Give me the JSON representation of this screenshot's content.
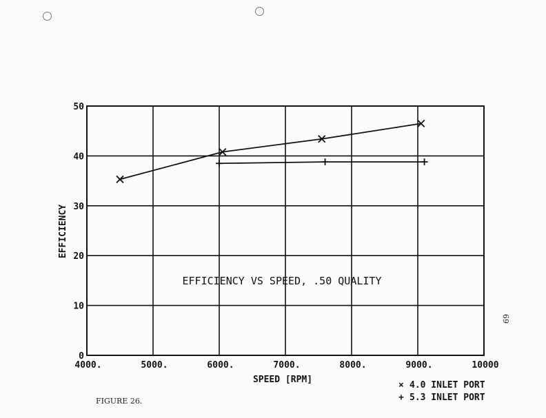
{
  "figure_caption": "FIGURE 26.",
  "page_number": "69",
  "chart_data": {
    "type": "line",
    "annotation": "EFFICIENCY VS SPEED, .50 QUALITY",
    "xlabel": "SPEED [RPM]",
    "ylabel": "EFFICIENCY",
    "xlim": [
      4000,
      10000
    ],
    "ylim": [
      0,
      50
    ],
    "x_ticks": [
      4000,
      5000,
      6000,
      7000,
      8000,
      9000,
      10000
    ],
    "x_tick_labels": [
      "4000.",
      "5000.",
      "6000.",
      "7000.",
      "8000.",
      "9000.",
      "10000"
    ],
    "y_ticks": [
      0,
      10,
      20,
      30,
      40,
      50
    ],
    "y_tick_labels": [
      "0",
      "10",
      "20",
      "30",
      "40",
      "50"
    ],
    "grid": true,
    "legend_position": "bottom-right, below plot",
    "series": [
      {
        "name": "4.0 INLET PORT",
        "marker": "x",
        "color": "#111111",
        "x": [
          4500,
          6050,
          7550,
          9050
        ],
        "y": [
          35.3,
          40.8,
          43.4,
          46.5
        ]
      },
      {
        "name": "5.3 INLET PORT",
        "marker": "+",
        "color": "#111111",
        "x": [
          6000,
          7600,
          9100
        ],
        "y": [
          38.5,
          38.8,
          38.8
        ]
      }
    ]
  }
}
